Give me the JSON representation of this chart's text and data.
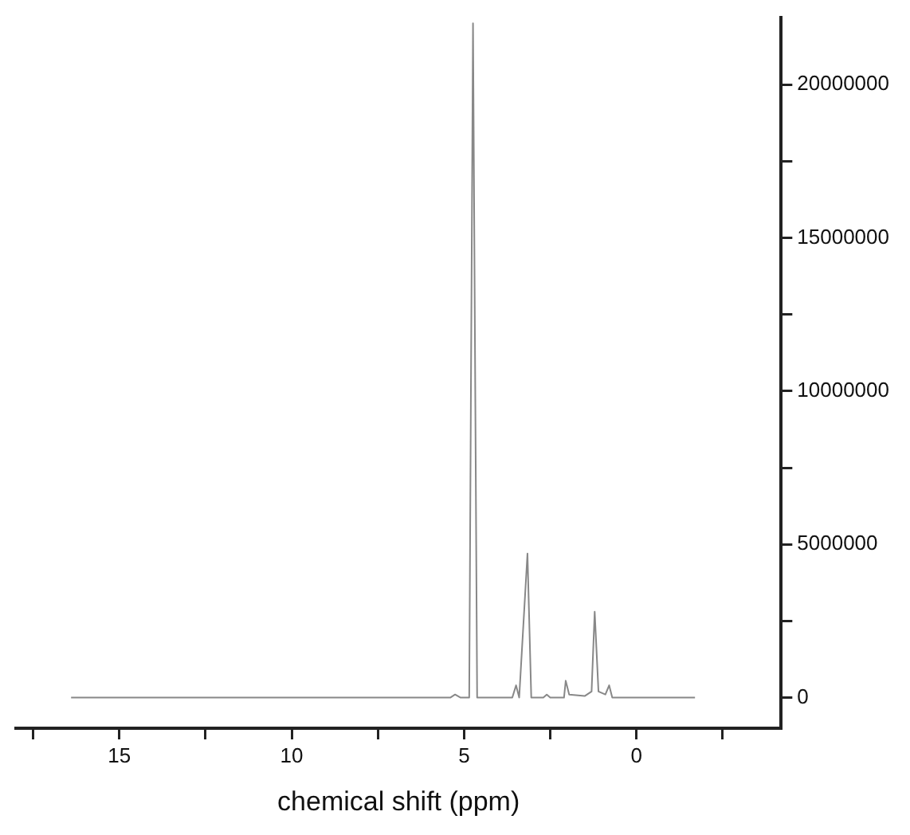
{
  "chart_data": {
    "type": "line",
    "xlabel": "chemical shift (ppm)",
    "x": [
      16.4,
      7.0,
      5.4,
      5.26,
      5.1,
      4.85,
      4.74,
      4.62,
      3.6,
      3.49,
      3.4,
      3.16,
      3.05,
      2.7,
      2.6,
      2.5,
      2.1,
      2.05,
      1.95,
      1.5,
      1.3,
      1.21,
      1.1,
      0.9,
      0.79,
      0.7,
      -1.7
    ],
    "series": [
      {
        "color": "#888888",
        "values": [
          0,
          0,
          0,
          100000,
          0,
          0,
          22000000,
          0,
          0,
          400000,
          0,
          4700000,
          0,
          0,
          100000,
          0,
          0,
          550000,
          100000,
          50000,
          200000,
          2800000,
          200000,
          100000,
          400000,
          0,
          0
        ]
      }
    ],
    "xlim": [
      18,
      -4.2
    ],
    "xticks": [
      {
        "value": 17.5,
        "label": null
      },
      15,
      {
        "value": 12.5,
        "label": null
      },
      10,
      {
        "value": 7.5,
        "label": null
      },
      5,
      {
        "value": 2.5,
        "label": null
      },
      0,
      {
        "value": -2.5,
        "label": null
      }
    ],
    "ylim": [
      -1000000,
      22200000
    ],
    "yticks": [
      0,
      {
        "value": 2500000,
        "label": null
      },
      5000000,
      {
        "value": 7500000,
        "label": null
      },
      10000000,
      {
        "value": 12500000,
        "label": null
      },
      15000000,
      {
        "value": 17500000,
        "label": null
      },
      20000000
    ],
    "grid": false,
    "legend": false,
    "marker": "none",
    "line_style": "solid"
  }
}
